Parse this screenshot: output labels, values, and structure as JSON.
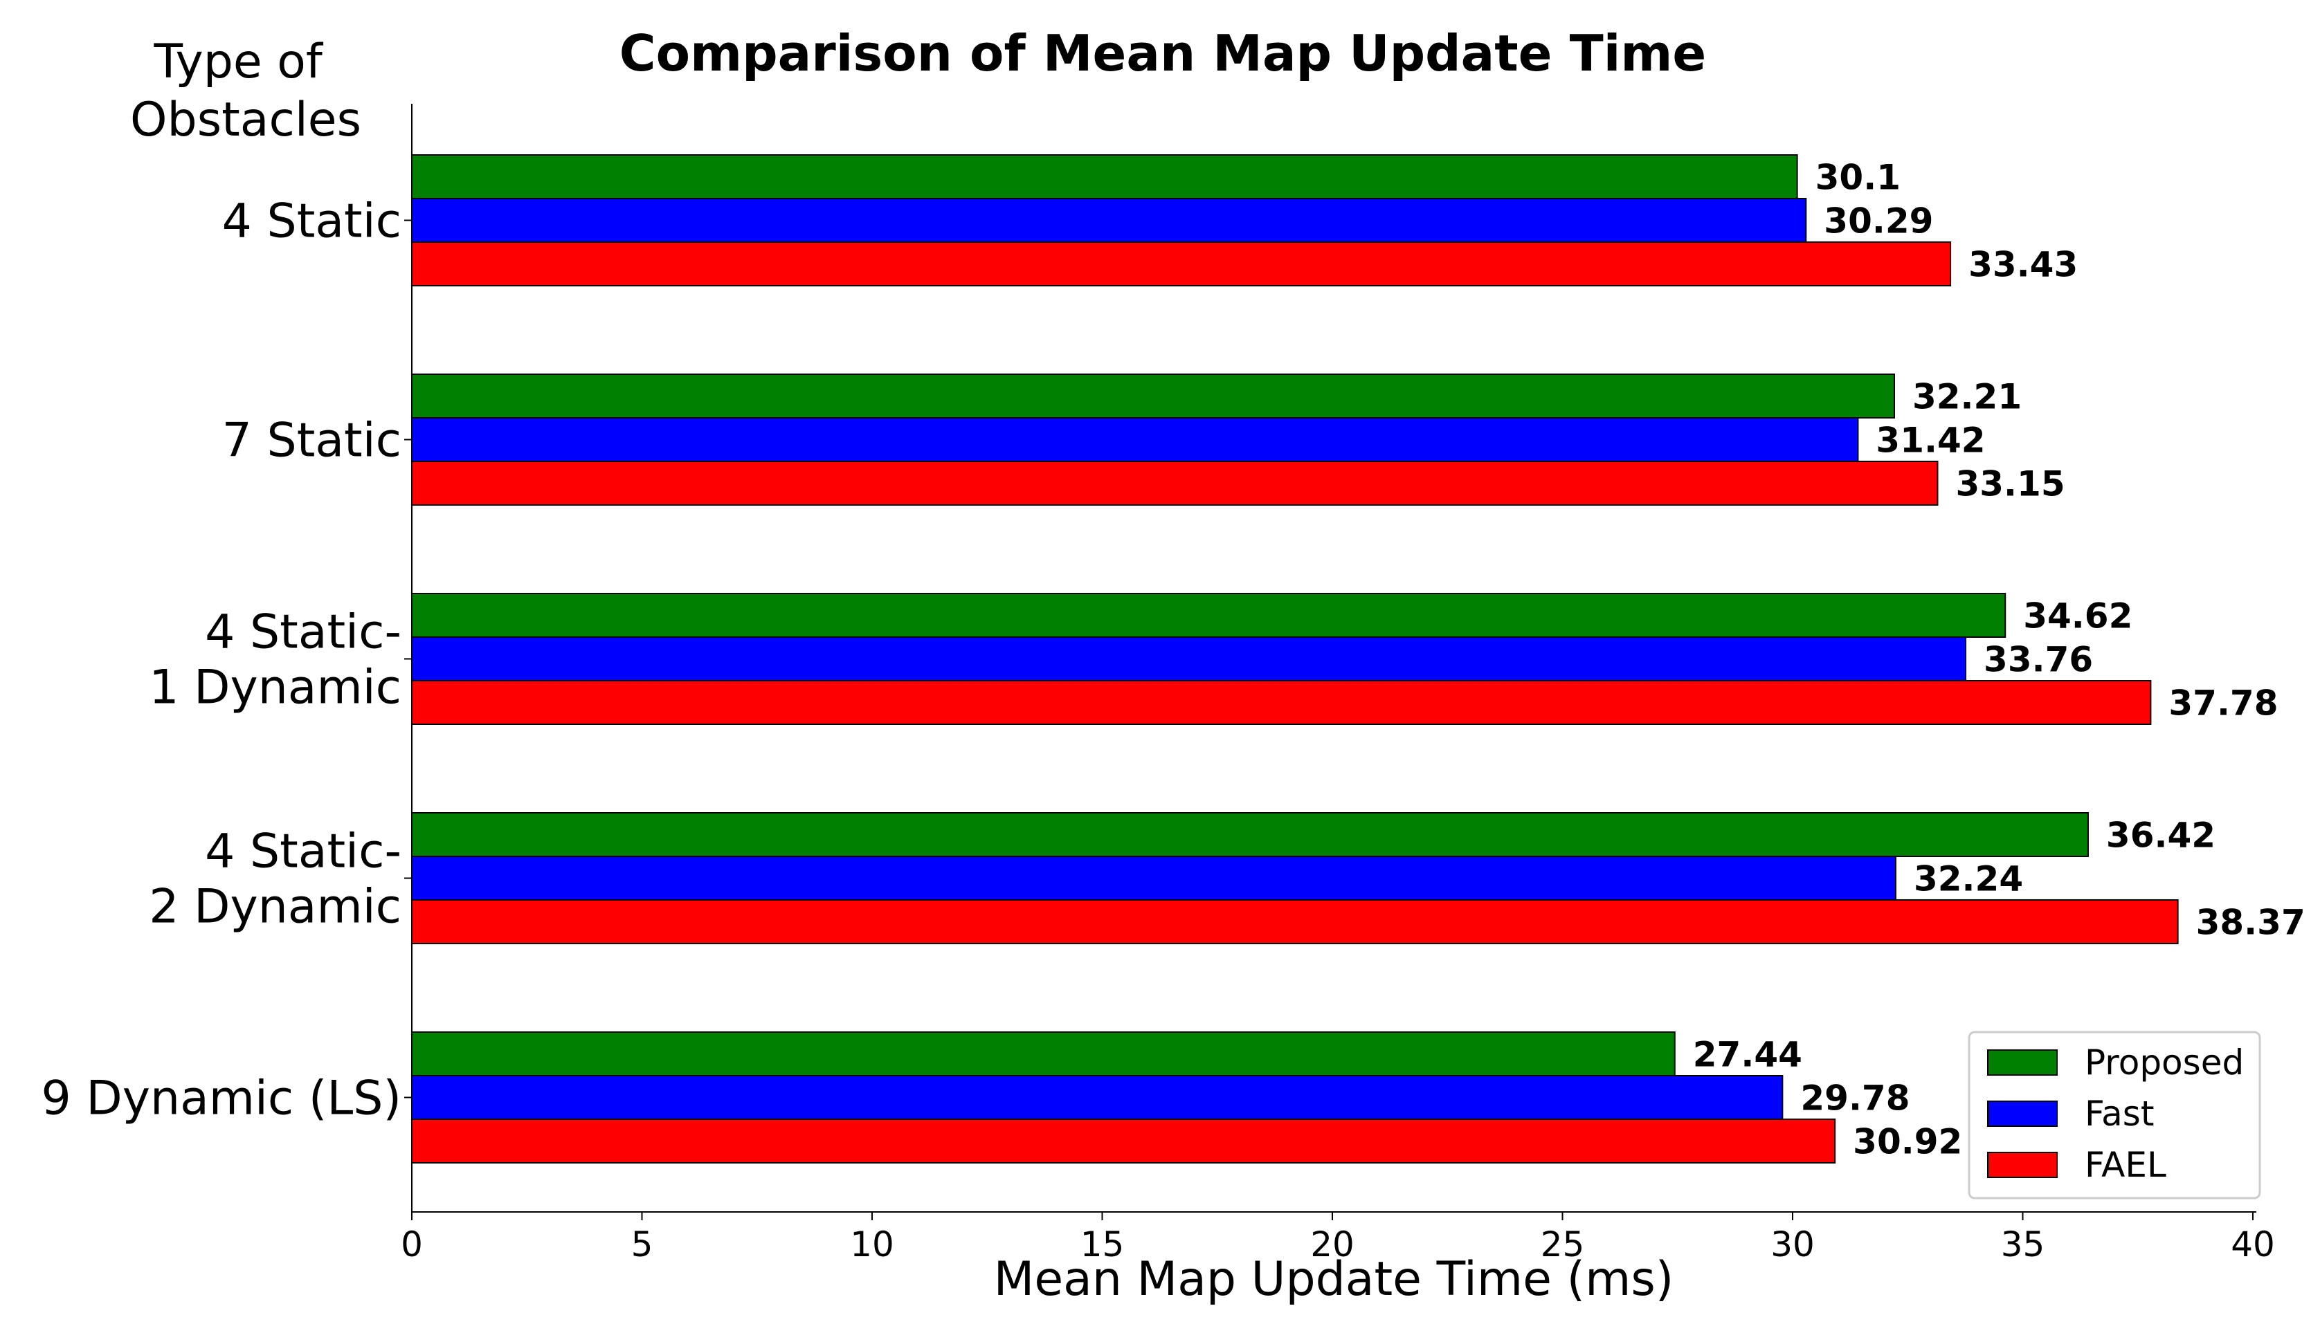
{
  "chart_data": {
    "type": "bar",
    "orientation": "horizontal",
    "title": "Comparison of Mean Map Update Time",
    "xlabel": "Mean Map Update Time (ms)",
    "ylabel": [
      "Type of",
      "Obstacles"
    ],
    "xlim": [
      0,
      40
    ],
    "xticks": [
      0,
      5,
      10,
      15,
      20,
      25,
      30,
      35,
      40
    ],
    "grid": false,
    "legend_position": "bottom-right",
    "categories": [
      [
        "4 Static"
      ],
      [
        "7 Static"
      ],
      [
        "4 Static-",
        "1 Dynamic"
      ],
      [
        "4 Static-",
        "2 Dynamic"
      ],
      [
        "9 Dynamic (LS)"
      ]
    ],
    "series": [
      {
        "name": "Proposed",
        "color": "#008000",
        "values": [
          30.1,
          32.21,
          34.62,
          36.42,
          27.44
        ]
      },
      {
        "name": "Fast",
        "color": "#0000ff",
        "values": [
          30.29,
          31.42,
          33.76,
          32.24,
          29.78
        ]
      },
      {
        "name": "FAEL",
        "color": "#ff0000",
        "values": [
          33.43,
          33.15,
          37.78,
          38.37,
          30.92
        ]
      }
    ]
  }
}
